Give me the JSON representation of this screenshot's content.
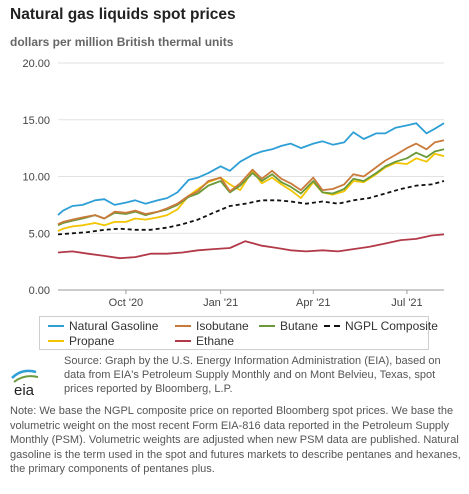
{
  "title": "Natural gas liquids spot prices",
  "subtitle": "dollars per million British thermal units",
  "source_text": "Source: Graph by the U.S. Energy Information Administration (EIA), based on data from EIA's Petroleum Supply Monthly and on Mont Belvieu, Texas, spot prices reported by Bloomberg, L.P.",
  "note_text": "Note: We base the NGPL composite price on reported Bloomberg spot prices. We base the volumetric weight on the most recent Form EIA-816 data reported in the Petroleum Supply Monthly (PSM). Volumetric weights are adjusted when new PSM data are published. Natural gasoline is the term used in the spot and futures markets to describe pentanes and hexanes, the primary components of pentanes plus.",
  "logo_text": "eia",
  "chart_data": {
    "type": "line",
    "title": "Natural gas liquids spot prices",
    "ylabel": "dollars per million British thermal units",
    "ylim": [
      0,
      20
    ],
    "yticks": [
      "0.00",
      "5.00",
      "10.00",
      "15.00",
      "20.00"
    ],
    "xlim": [
      "2020-07-27",
      "2021-08-06"
    ],
    "xticks": [
      {
        "label": "Oct '20",
        "date": "2020-10-01"
      },
      {
        "label": "Jan '21",
        "date": "2021-01-01"
      },
      {
        "label": "Apr '21",
        "date": "2021-04-01"
      },
      {
        "label": "Jul '21",
        "date": "2021-07-01"
      }
    ],
    "grid": true,
    "legend_position": "bottom",
    "series": [
      {
        "name": "Natural Gasoline",
        "color": "#2e9fd6",
        "dash": false,
        "x": [
          "2020-07-27",
          "2020-08-01",
          "2020-08-10",
          "2020-08-20",
          "2020-09-01",
          "2020-09-10",
          "2020-09-20",
          "2020-10-01",
          "2020-10-10",
          "2020-10-20",
          "2020-11-01",
          "2020-11-10",
          "2020-11-20",
          "2020-12-01",
          "2020-12-10",
          "2020-12-20",
          "2021-01-01",
          "2021-01-10",
          "2021-01-20",
          "2021-02-01",
          "2021-02-10",
          "2021-02-20",
          "2021-03-01",
          "2021-03-10",
          "2021-03-20",
          "2021-04-01",
          "2021-04-10",
          "2021-04-20",
          "2021-05-01",
          "2021-05-10",
          "2021-05-20",
          "2021-06-01",
          "2021-06-10",
          "2021-06-20",
          "2021-07-01",
          "2021-07-10",
          "2021-07-20",
          "2021-07-28",
          "2021-08-06"
        ],
        "values": [
          6.6,
          7.0,
          7.4,
          7.5,
          7.9,
          8.0,
          7.5,
          7.7,
          7.9,
          7.6,
          7.9,
          8.1,
          8.6,
          9.7,
          9.9,
          10.3,
          10.9,
          10.5,
          11.3,
          11.9,
          12.2,
          12.4,
          12.7,
          12.9,
          12.5,
          12.9,
          13.1,
          12.8,
          13.0,
          13.9,
          13.3,
          13.8,
          13.8,
          14.3,
          14.5,
          14.7,
          13.8,
          14.2,
          14.7
        ]
      },
      {
        "name": "Isobutane",
        "color": "#c97a3a",
        "dash": false,
        "x": [
          "2020-07-27",
          "2020-08-01",
          "2020-08-10",
          "2020-08-20",
          "2020-09-01",
          "2020-09-10",
          "2020-09-20",
          "2020-10-01",
          "2020-10-10",
          "2020-10-20",
          "2020-11-01",
          "2020-11-10",
          "2020-11-20",
          "2020-12-01",
          "2020-12-10",
          "2020-12-20",
          "2021-01-01",
          "2021-01-10",
          "2021-01-20",
          "2021-02-01",
          "2021-02-10",
          "2021-02-20",
          "2021-03-01",
          "2021-03-10",
          "2021-03-20",
          "2021-04-01",
          "2021-04-10",
          "2021-04-20",
          "2021-05-01",
          "2021-05-10",
          "2021-05-20",
          "2021-06-01",
          "2021-06-10",
          "2021-06-20",
          "2021-07-01",
          "2021-07-10",
          "2021-07-20",
          "2021-07-28",
          "2021-08-06"
        ],
        "values": [
          5.8,
          6.0,
          6.2,
          6.4,
          6.6,
          6.3,
          6.9,
          6.8,
          7.0,
          6.7,
          6.9,
          7.2,
          7.6,
          8.3,
          8.7,
          9.6,
          9.9,
          8.7,
          9.4,
          10.6,
          9.8,
          10.5,
          9.8,
          9.4,
          8.8,
          9.9,
          8.8,
          8.9,
          9.3,
          10.2,
          10.0,
          10.8,
          11.4,
          11.9,
          12.5,
          12.9,
          12.4,
          13.0,
          13.2
        ]
      },
      {
        "name": "Butane",
        "color": "#6a9a3a",
        "dash": false,
        "x": [
          "2020-07-27",
          "2020-08-01",
          "2020-08-10",
          "2020-08-20",
          "2020-09-01",
          "2020-09-10",
          "2020-09-20",
          "2020-10-01",
          "2020-10-10",
          "2020-10-20",
          "2020-11-01",
          "2020-11-10",
          "2020-11-20",
          "2020-12-01",
          "2020-12-10",
          "2020-12-20",
          "2021-01-01",
          "2021-01-10",
          "2021-01-20",
          "2021-02-01",
          "2021-02-10",
          "2021-02-20",
          "2021-03-01",
          "2021-03-10",
          "2021-03-20",
          "2021-04-01",
          "2021-04-10",
          "2021-04-20",
          "2021-05-01",
          "2021-05-10",
          "2021-05-20",
          "2021-06-01",
          "2021-06-10",
          "2021-06-20",
          "2021-07-01",
          "2021-07-10",
          "2021-07-20",
          "2021-07-28",
          "2021-08-06"
        ],
        "values": [
          5.7,
          5.9,
          6.1,
          6.3,
          6.6,
          6.3,
          6.8,
          6.7,
          6.9,
          6.6,
          6.9,
          7.1,
          7.5,
          8.2,
          8.5,
          9.2,
          9.6,
          8.6,
          9.2,
          10.3,
          9.6,
          10.2,
          9.5,
          9.1,
          8.5,
          9.6,
          8.6,
          8.5,
          8.9,
          9.8,
          9.6,
          10.3,
          10.9,
          11.3,
          11.6,
          12.1,
          11.7,
          12.2,
          12.4
        ]
      },
      {
        "name": "NGPL Composite",
        "color": "#111111",
        "dash": true,
        "x": [
          "2020-07-27",
          "2020-08-10",
          "2020-08-25",
          "2020-09-10",
          "2020-09-25",
          "2020-10-10",
          "2020-10-25",
          "2020-11-10",
          "2020-11-25",
          "2020-12-10",
          "2020-12-25",
          "2021-01-10",
          "2021-01-25",
          "2021-02-10",
          "2021-02-25",
          "2021-03-10",
          "2021-03-25",
          "2021-04-10",
          "2021-04-25",
          "2021-05-10",
          "2021-05-25",
          "2021-06-10",
          "2021-06-25",
          "2021-07-10",
          "2021-07-25",
          "2021-08-06"
        ],
        "values": [
          4.9,
          5.0,
          5.1,
          5.3,
          5.4,
          5.3,
          5.3,
          5.5,
          5.8,
          6.2,
          6.8,
          7.4,
          7.6,
          7.9,
          7.9,
          7.8,
          7.6,
          7.8,
          7.6,
          7.9,
          8.1,
          8.5,
          8.9,
          9.2,
          9.3,
          9.6
        ]
      },
      {
        "name": "Propane",
        "color": "#f2c500",
        "dash": false,
        "x": [
          "2020-07-27",
          "2020-08-01",
          "2020-08-10",
          "2020-08-20",
          "2020-09-01",
          "2020-09-10",
          "2020-09-20",
          "2020-10-01",
          "2020-10-10",
          "2020-10-20",
          "2020-11-01",
          "2020-11-10",
          "2020-11-20",
          "2020-12-01",
          "2020-12-10",
          "2020-12-20",
          "2021-01-01",
          "2021-01-10",
          "2021-01-20",
          "2021-02-01",
          "2021-02-10",
          "2021-02-20",
          "2021-03-01",
          "2021-03-10",
          "2021-03-20",
          "2021-04-01",
          "2021-04-10",
          "2021-04-20",
          "2021-05-01",
          "2021-05-10",
          "2021-05-20",
          "2021-06-01",
          "2021-06-10",
          "2021-06-20",
          "2021-07-01",
          "2021-07-10",
          "2021-07-20",
          "2021-07-28",
          "2021-08-06"
        ],
        "values": [
          5.2,
          5.4,
          5.6,
          5.7,
          5.9,
          5.7,
          6.0,
          6.0,
          6.3,
          6.2,
          6.4,
          6.6,
          7.1,
          8.3,
          8.9,
          9.5,
          9.9,
          9.3,
          8.8,
          10.5,
          9.4,
          9.9,
          9.3,
          8.8,
          8.1,
          9.5,
          8.6,
          8.4,
          8.7,
          9.6,
          9.5,
          10.2,
          10.8,
          11.2,
          11.1,
          11.6,
          11.3,
          12.0,
          11.8
        ]
      },
      {
        "name": "Ethane",
        "color": "#b23a48",
        "dash": false,
        "x": [
          "2020-07-27",
          "2020-08-10",
          "2020-08-25",
          "2020-09-10",
          "2020-09-25",
          "2020-10-10",
          "2020-10-25",
          "2020-11-10",
          "2020-11-25",
          "2020-12-10",
          "2020-12-25",
          "2021-01-10",
          "2021-01-25",
          "2021-02-10",
          "2021-02-25",
          "2021-03-10",
          "2021-03-25",
          "2021-04-10",
          "2021-04-25",
          "2021-05-10",
          "2021-05-25",
          "2021-06-10",
          "2021-06-25",
          "2021-07-10",
          "2021-07-25",
          "2021-08-06"
        ],
        "values": [
          3.3,
          3.4,
          3.2,
          3.0,
          2.8,
          2.9,
          3.2,
          3.2,
          3.3,
          3.5,
          3.6,
          3.7,
          4.3,
          3.9,
          3.7,
          3.5,
          3.4,
          3.5,
          3.4,
          3.6,
          3.8,
          4.1,
          4.4,
          4.5,
          4.8,
          4.9
        ]
      }
    ]
  }
}
